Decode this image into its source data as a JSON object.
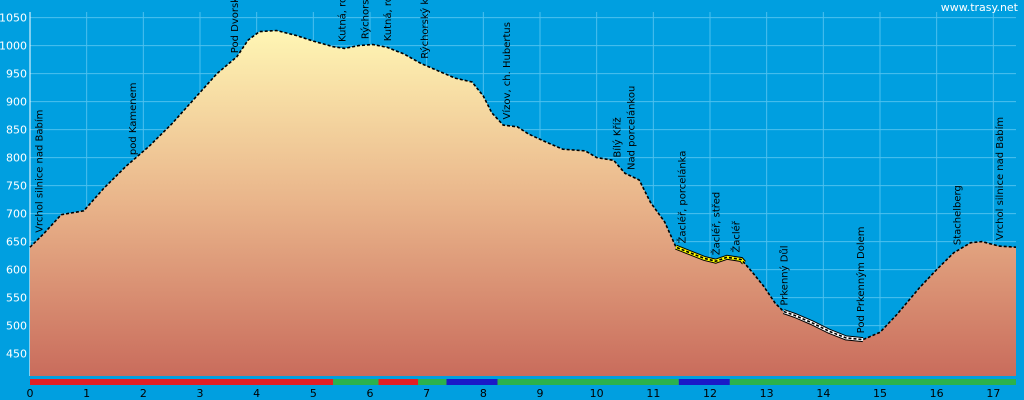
{
  "chart_data": {
    "type": "area",
    "title": "",
    "xlabel": "",
    "ylabel": "",
    "xlim": [
      0,
      17.4
    ],
    "ylim": [
      410,
      1060
    ],
    "x_ticks": [
      0,
      1,
      2,
      3,
      4,
      5,
      6,
      7,
      8,
      9,
      10,
      11,
      12,
      13,
      14,
      15,
      16,
      17
    ],
    "y_ticks": [
      450,
      500,
      550,
      600,
      650,
      700,
      750,
      800,
      850,
      900,
      950,
      1000,
      1050
    ],
    "grid": true,
    "credit": "www.trasy.net",
    "profile": [
      [
        0.0,
        640
      ],
      [
        0.25,
        665
      ],
      [
        0.55,
        698
      ],
      [
        0.95,
        705
      ],
      [
        1.3,
        745
      ],
      [
        1.7,
        785
      ],
      [
        2.1,
        820
      ],
      [
        2.5,
        860
      ],
      [
        2.9,
        905
      ],
      [
        3.3,
        950
      ],
      [
        3.65,
        980
      ],
      [
        3.85,
        1010
      ],
      [
        4.05,
        1025
      ],
      [
        4.35,
        1027
      ],
      [
        4.7,
        1018
      ],
      [
        5.0,
        1008
      ],
      [
        5.35,
        998
      ],
      [
        5.55,
        995
      ],
      [
        5.8,
        1000
      ],
      [
        6.05,
        1002
      ],
      [
        6.3,
        997
      ],
      [
        6.6,
        985
      ],
      [
        6.9,
        968
      ],
      [
        7.2,
        955
      ],
      [
        7.5,
        942
      ],
      [
        7.8,
        935
      ],
      [
        8.0,
        910
      ],
      [
        8.15,
        880
      ],
      [
        8.35,
        858
      ],
      [
        8.6,
        855
      ],
      [
        8.8,
        842
      ],
      [
        9.1,
        828
      ],
      [
        9.4,
        815
      ],
      [
        9.8,
        812
      ],
      [
        10.0,
        800
      ],
      [
        10.3,
        795
      ],
      [
        10.5,
        772
      ],
      [
        10.75,
        760
      ],
      [
        10.95,
        720
      ],
      [
        11.2,
        685
      ],
      [
        11.4,
        640
      ],
      [
        11.6,
        632
      ],
      [
        11.9,
        620
      ],
      [
        12.1,
        615
      ],
      [
        12.3,
        622
      ],
      [
        12.55,
        618
      ],
      [
        12.75,
        595
      ],
      [
        12.95,
        570
      ],
      [
        13.15,
        540
      ],
      [
        13.3,
        525
      ],
      [
        13.5,
        518
      ],
      [
        13.8,
        505
      ],
      [
        14.1,
        490
      ],
      [
        14.4,
        478
      ],
      [
        14.7,
        475
      ],
      [
        15.0,
        488
      ],
      [
        15.3,
        520
      ],
      [
        15.7,
        568
      ],
      [
        16.0,
        600
      ],
      [
        16.3,
        630
      ],
      [
        16.6,
        648
      ],
      [
        16.8,
        650
      ],
      [
        17.1,
        642
      ],
      [
        17.4,
        640
      ]
    ],
    "highlight_segments": [
      {
        "x_start": 11.4,
        "x_end": 12.6,
        "color": "#ffff00"
      },
      {
        "x_start": 13.3,
        "x_end": 14.7,
        "color": "#ffffff"
      }
    ],
    "waypoints": [
      {
        "label": "Vrchol silnice nad Babím",
        "x": 0.15
      },
      {
        "label": "pod Kamenem",
        "x": 1.8
      },
      {
        "label": "Pod Dvorským lesem",
        "x": 3.6
      },
      {
        "label": "Kutná, rozc.",
        "x": 5.5
      },
      {
        "label": "Rýchorská bouda",
        "x": 5.9
      },
      {
        "label": "Kutná, rozc.",
        "x": 6.3
      },
      {
        "label": "Rýchorský kříž",
        "x": 6.95
      },
      {
        "label": "Vízov, ch. Hubertus",
        "x": 8.4
      },
      {
        "label": "Bílý Kříž",
        "x": 10.35
      },
      {
        "label": "Nad porcelánkou",
        "x": 10.6
      },
      {
        "label": "Žacléř, porcelánka",
        "x": 11.5
      },
      {
        "label": "Žacléř, střed",
        "x": 12.1
      },
      {
        "label": "Žacléř",
        "x": 12.45
      },
      {
        "label": "Prkenný Důl",
        "x": 13.3
      },
      {
        "label": "Pod Prkenným Dolem",
        "x": 14.65
      },
      {
        "label": "Stachelberg",
        "x": 16.35
      },
      {
        "label": "Vrchol silnice nad Babím",
        "x": 17.1
      }
    ],
    "surface_bar": [
      {
        "x_start": 0.0,
        "x_end": 5.35,
        "color": "#e31e24"
      },
      {
        "x_start": 5.35,
        "x_end": 6.15,
        "color": "#2bb24c"
      },
      {
        "x_start": 6.15,
        "x_end": 6.85,
        "color": "#e31e24"
      },
      {
        "x_start": 6.85,
        "x_end": 7.35,
        "color": "#2bb24c"
      },
      {
        "x_start": 7.35,
        "x_end": 8.25,
        "color": "#1a1ac8"
      },
      {
        "x_start": 8.25,
        "x_end": 11.45,
        "color": "#2bb24c"
      },
      {
        "x_start": 11.45,
        "x_end": 12.35,
        "color": "#1a1ac8"
      },
      {
        "x_start": 12.35,
        "x_end": 17.4,
        "color": "#2bb24c"
      }
    ],
    "colors": {
      "background": "#009fe0",
      "grid": "#4dc0ee",
      "fill_top": "#fff6b4",
      "fill_mid": "#e9b48a",
      "fill_bottom": "#c96c5c",
      "outline": "#000000"
    }
  }
}
